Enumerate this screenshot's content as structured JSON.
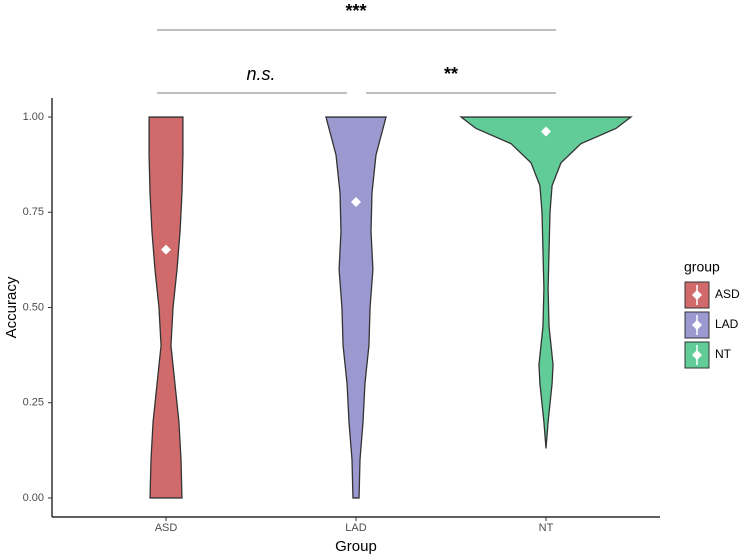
{
  "chart_data": {
    "type": "violin",
    "x_label": "Group",
    "y_label": "Accuracy",
    "categories": [
      "ASD",
      "LAD",
      "NT"
    ],
    "ylim": [
      -0.05,
      1.05
    ],
    "yticks": [
      {
        "value": 0,
        "label": "0.00"
      },
      {
        "value": 0.25,
        "label": "0.25"
      },
      {
        "value": 0.5,
        "label": "0.50"
      },
      {
        "value": 0.75,
        "label": "0.75"
      },
      {
        "value": 1,
        "label": "1.00"
      }
    ],
    "legend_title": "group",
    "legend_position": "right",
    "series": [
      {
        "name": "ASD",
        "color": "#d16b6b",
        "mean": 0.652,
        "density_y": [
          0,
          0.1,
          0.2,
          0.3,
          0.4,
          0.5,
          0.6,
          0.7,
          0.8,
          0.9,
          1.0
        ],
        "half_width": [
          0.084,
          0.079,
          0.068,
          0.047,
          0.026,
          0.037,
          0.058,
          0.074,
          0.084,
          0.089,
          0.089
        ]
      },
      {
        "name": "LAD",
        "color": "#9c98d0",
        "mean": 0.777,
        "density_y": [
          0,
          0.1,
          0.2,
          0.3,
          0.4,
          0.5,
          0.6,
          0.7,
          0.8,
          0.9,
          1.0
        ],
        "half_width": [
          0.016,
          0.021,
          0.037,
          0.047,
          0.068,
          0.074,
          0.089,
          0.079,
          0.084,
          0.105,
          0.158
        ]
      },
      {
        "name": "NT",
        "color": "#62cc98",
        "mean": 0.962,
        "density_y": [
          0.13,
          0.2,
          0.3,
          0.35,
          0.45,
          0.55,
          0.65,
          0.75,
          0.82,
          0.88,
          0.93,
          0.97,
          1.0
        ],
        "half_width": [
          0,
          0.011,
          0.032,
          0.037,
          0.016,
          0.011,
          0.016,
          0.021,
          0.032,
          0.079,
          0.184,
          0.368,
          0.447
        ]
      }
    ],
    "annotations": [
      {
        "text": "***",
        "from": 0,
        "to": 2
      },
      {
        "text": "n.s.",
        "from": 0,
        "to": 1
      },
      {
        "text": "**",
        "from": 1,
        "to": 2
      }
    ]
  }
}
